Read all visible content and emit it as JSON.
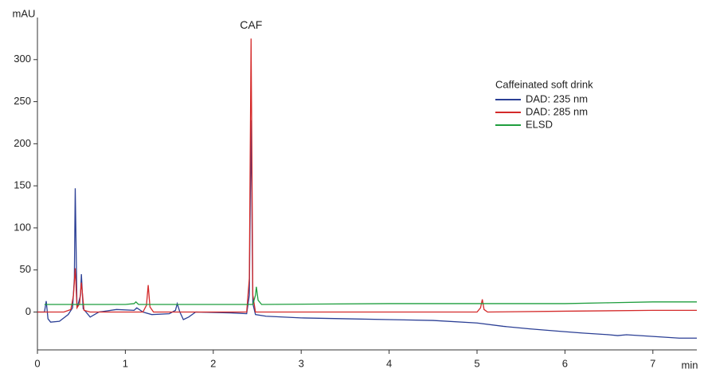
{
  "chart_data": {
    "type": "line",
    "y_label": "mAU",
    "x_label": "min",
    "annotation": "CAF",
    "legend_title": "Caffeinated soft drink",
    "legend": "upper right",
    "xlim": [
      0,
      7.5
    ],
    "ylim": [
      -45,
      350
    ],
    "xticks": [
      0,
      1,
      2,
      3,
      4,
      5,
      6,
      7
    ],
    "yticks": [
      0,
      50,
      100,
      150,
      200,
      250,
      300
    ],
    "series": [
      {
        "name": "DAD: 235 nm",
        "color": "#2b3f95",
        "x": [
          0,
          0.08,
          0.1,
          0.12,
          0.15,
          0.25,
          0.35,
          0.4,
          0.42,
          0.43,
          0.45,
          0.47,
          0.49,
          0.5,
          0.52,
          0.6,
          0.7,
          0.9,
          1.1,
          1.13,
          1.2,
          1.3,
          1.5,
          1.57,
          1.59,
          1.62,
          1.66,
          1.72,
          1.8,
          2.2,
          2.38,
          2.41,
          2.43,
          2.45,
          2.48,
          2.6,
          3,
          3.5,
          4,
          4.5,
          5,
          5.3,
          5.6,
          5.95,
          6.2,
          6.5,
          6.6,
          6.7,
          7,
          7.3,
          7.5
        ],
        "values": [
          0,
          0,
          13,
          -8,
          -12,
          -11,
          -3,
          5,
          40,
          147,
          5,
          12,
          20,
          45,
          4,
          -6,
          0,
          3,
          2,
          5,
          0,
          -3,
          -2,
          2,
          10,
          0,
          -9,
          -6,
          0,
          -1,
          -2,
          20,
          228,
          10,
          -3,
          -5,
          -7,
          -8,
          -9,
          -10,
          -13,
          -17,
          -20,
          -23,
          -25,
          -27,
          -28,
          -27,
          -29,
          -31,
          -31
        ]
      },
      {
        "name": "DAD: 285 nm",
        "color": "#d42a2a",
        "x": [
          0,
          0.3,
          0.38,
          0.41,
          0.43,
          0.45,
          0.48,
          0.5,
          0.53,
          0.6,
          1.2,
          1.24,
          1.26,
          1.28,
          1.32,
          2.38,
          2.41,
          2.43,
          2.45,
          2.48,
          5.0,
          5.04,
          5.06,
          5.08,
          5.12,
          6,
          7,
          7.5
        ],
        "values": [
          0,
          0,
          3,
          20,
          52,
          5,
          10,
          35,
          2,
          0,
          0,
          8,
          32,
          6,
          0,
          0,
          40,
          325,
          20,
          0,
          0,
          5,
          15,
          3,
          0,
          1,
          2,
          2
        ]
      },
      {
        "name": "ELSD",
        "color": "#1f9e3e",
        "x": [
          0.08,
          1.0,
          1.1,
          1.12,
          1.15,
          2.45,
          2.48,
          2.49,
          2.51,
          2.55,
          4,
          6,
          6.5,
          7,
          7.5
        ],
        "values": [
          9,
          9,
          10,
          12,
          9,
          9,
          20,
          30,
          14,
          9,
          10,
          10,
          11,
          12,
          12
        ]
      }
    ]
  }
}
